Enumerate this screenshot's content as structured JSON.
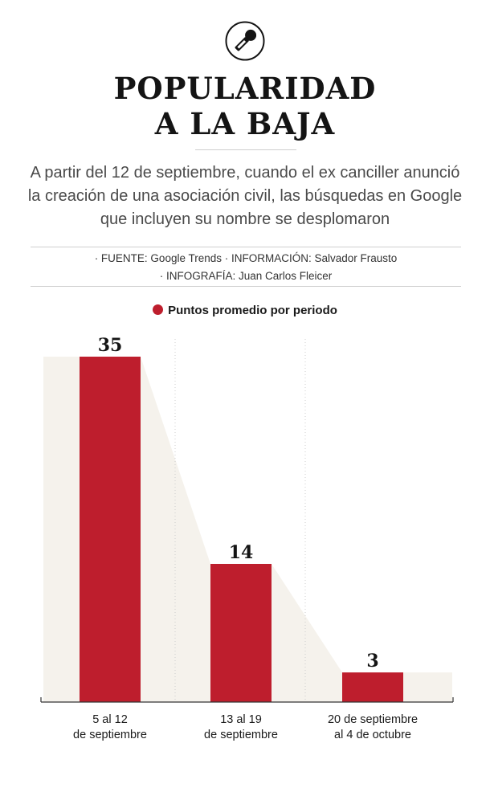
{
  "title_lines": [
    "POPULARIDAD",
    "A LA BAJA"
  ],
  "subtitle_lines": [
    "A partir del 12 de septiembre, cuando el ex canciller anunció",
    "la creación de una asociación civil, las búsquedas en Google",
    "que incluyen su nombre se desplomaron"
  ],
  "credits_lines": [
    "· FUENTE: Google Trends · INFORMACIÓN: Salvador Frausto",
    "· INFOGRAFÍA: Juan Carlos Fleicer"
  ],
  "icon": "microphone-icon",
  "colors": {
    "bar": "#be1e2d",
    "area": "#f5f2ec",
    "text": "#1a1a1a"
  },
  "chart_data": {
    "type": "bar",
    "legend": "Puntos promedio por periodo",
    "categories": [
      [
        "5 al 12",
        "de septiembre"
      ],
      [
        "13 al 19",
        "de septiembre"
      ],
      [
        "20 de septiembre",
        "al 4 de octubre"
      ]
    ],
    "values": [
      35,
      14,
      3
    ],
    "ylim": [
      0,
      35
    ],
    "grid": "vertical dotted separators"
  }
}
